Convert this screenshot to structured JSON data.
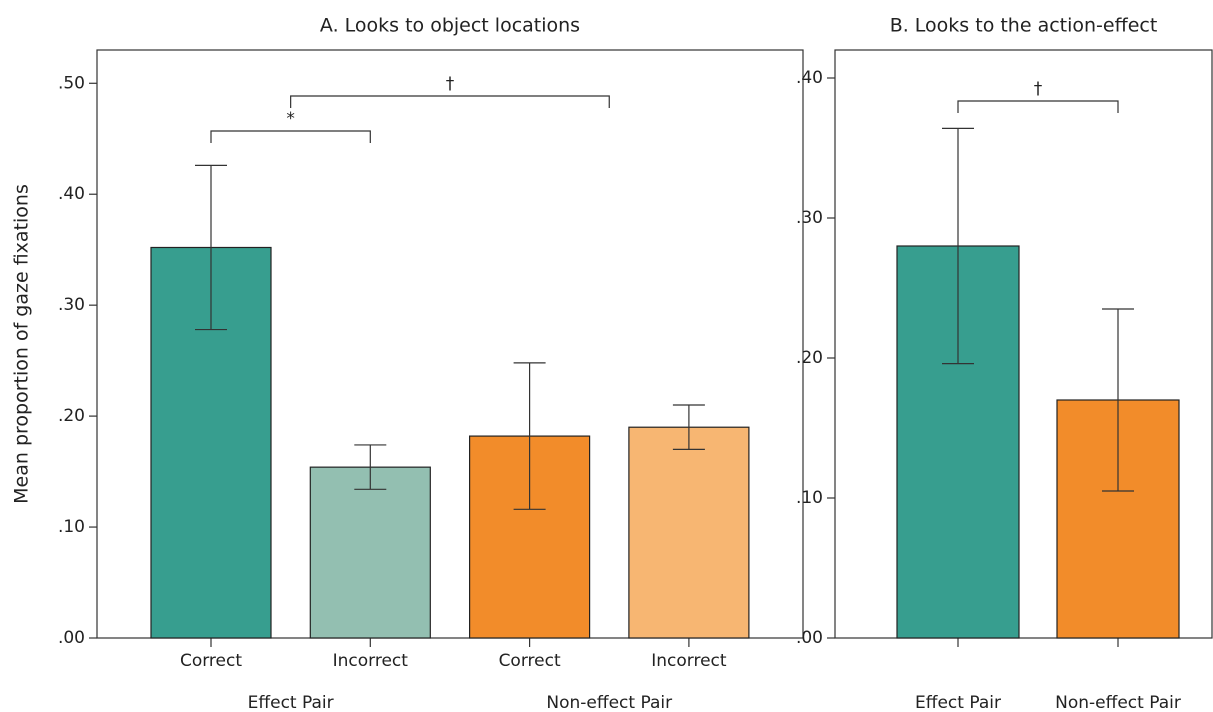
{
  "chart_data": [
    {
      "type": "bar",
      "title": "A. Looks to object locations",
      "y_label": "Mean proportion of gaze fixations",
      "categories": [
        "Correct",
        "Incorrect",
        "Correct",
        "Incorrect"
      ],
      "groups": [
        "Effect Pair",
        "Non-effect Pair"
      ],
      "values": [
        0.352,
        0.154,
        0.182,
        0.19
      ],
      "errors": [
        0.074,
        0.02,
        0.066,
        0.02
      ],
      "colors": [
        "#379e8f",
        "#93bfb1",
        "#f28c2a",
        "#f7b672"
      ],
      "ylim": [
        0,
        0.53
      ],
      "yticks": [
        {
          "value": 0,
          "label": ".00"
        },
        {
          "value": 0.1,
          "label": ".10"
        },
        {
          "value": 0.2,
          "label": ".20"
        },
        {
          "value": 0.3,
          "label": ".30"
        },
        {
          "value": 0.4,
          "label": ".40"
        },
        {
          "value": 0.5,
          "label": ".50"
        }
      ],
      "annotations": [
        {
          "text": "*",
          "between": [
            0,
            1
          ]
        },
        {
          "text": "†",
          "between": [
            0.5,
            2.5
          ]
        }
      ]
    },
    {
      "type": "bar",
      "title": "B. Looks to the action-effect",
      "categories": [
        "Effect Pair",
        "Non-effect Pair"
      ],
      "values": [
        0.28,
        0.17
      ],
      "errors": [
        0.084,
        0.065
      ],
      "colors": [
        "#379e8f",
        "#f28c2a"
      ],
      "ylim": [
        0,
        0.42
      ],
      "yticks": [
        {
          "value": 0,
          "label": ".00"
        },
        {
          "value": 0.1,
          "label": ".10"
        },
        {
          "value": 0.2,
          "label": ".20"
        },
        {
          "value": 0.3,
          "label": ".30"
        },
        {
          "value": 0.4,
          "label": ".40"
        }
      ],
      "annotations": [
        {
          "text": "†",
          "between": [
            0,
            1
          ]
        }
      ]
    }
  ]
}
